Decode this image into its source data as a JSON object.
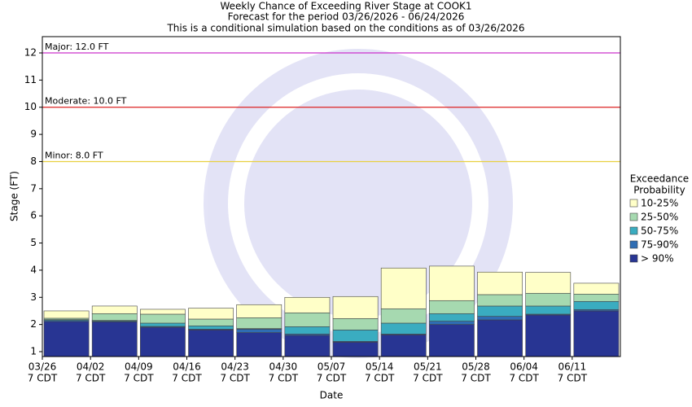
{
  "chart_data": {
    "type": "bar",
    "title": [
      "Weekly Chance of Exceeding River Stage at COOK1",
      "Forecast for the period 03/26/2026 - 06/24/2026",
      "This is a conditional simulation based on the conditions as of 03/26/2026"
    ],
    "x_label": "Date",
    "y_label": "Stage (FT)",
    "categories": [
      "03/26",
      "04/02",
      "04/09",
      "04/16",
      "04/23",
      "04/30",
      "05/07",
      "05/14",
      "05/21",
      "05/28",
      "06/04",
      "06/11"
    ],
    "category_sublabels": [
      "7 CDT",
      "7 CDT",
      "7 CDT",
      "7 CDT",
      "7 CDT",
      "7 CDT",
      "7 CDT",
      "7 CDT",
      "7 CDT",
      "7 CDT",
      "7 CDT",
      "7 CDT"
    ],
    "series": [
      {
        "name": "> 90%",
        "color": "#283593",
        "values": [
          2.11,
          2.1,
          1.9,
          1.8,
          1.7,
          1.6,
          1.35,
          1.62,
          2.0,
          2.17,
          2.35,
          2.5
        ]
      },
      {
        "name": "75-90%",
        "color": "#2f6db3",
        "values": [
          2.15,
          2.12,
          1.93,
          1.83,
          1.83,
          1.65,
          1.38,
          1.65,
          2.12,
          2.3,
          2.38,
          2.55
        ]
      },
      {
        "name": "50-75%",
        "color": "#3aacc0",
        "values": [
          2.18,
          2.15,
          2.05,
          1.95,
          1.85,
          1.92,
          1.8,
          2.05,
          2.4,
          2.68,
          2.68,
          2.85
        ]
      },
      {
        "name": "25-50%",
        "color": "#a6d9b0",
        "values": [
          2.23,
          2.4,
          2.38,
          2.2,
          2.25,
          2.43,
          2.22,
          2.58,
          2.88,
          3.1,
          3.15,
          3.12
        ]
      },
      {
        "name": "10-25%",
        "color": "#ffffc8",
        "values": [
          2.5,
          2.68,
          2.56,
          2.6,
          2.73,
          3.0,
          3.03,
          4.08,
          4.15,
          3.93,
          3.92,
          3.52
        ]
      }
    ],
    "legend_title": [
      "Exceedance",
      "Probability"
    ],
    "thresholds": [
      {
        "label": "Major: 12.0 FT",
        "value": 12,
        "color": "#cc33cc"
      },
      {
        "label": "Moderate: 10.0 FT",
        "value": 10,
        "color": "#dd2222"
      },
      {
        "label": "Minor: 8.0 FT",
        "value": 8,
        "color": "#e8d040"
      }
    ],
    "ylim": [
      0.82,
      12.6
    ],
    "yticks": [
      1,
      2,
      3,
      4,
      5,
      6,
      7,
      8,
      9,
      10,
      11,
      12
    ]
  }
}
